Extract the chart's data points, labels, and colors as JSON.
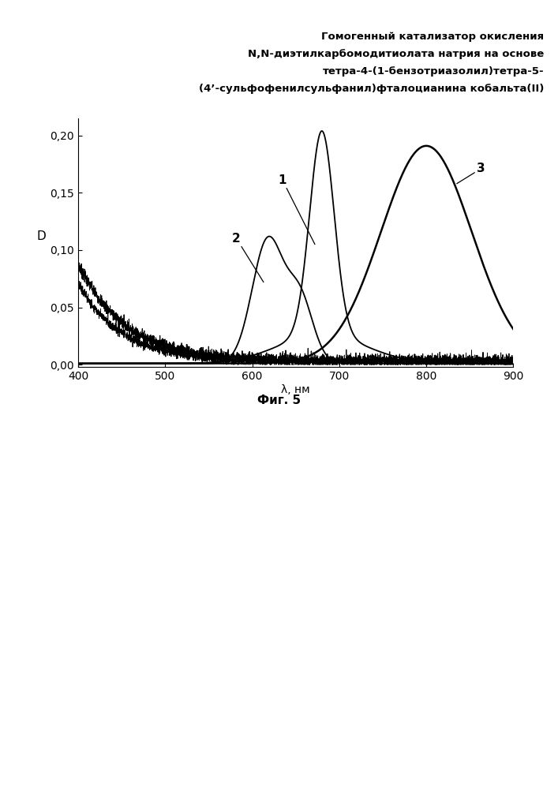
{
  "title_line1": "Гомогенный катализатор окисления",
  "title_line2": "N,N-диэтилкарбомодитиолата натрия на основе",
  "title_line3": "тетра-4-(1-бензотриазолил)тетра-5-",
  "title_line4": "(4’-сульфофенилсульфанил)фталоцианина кобальта(II)",
  "xlabel": "λ, нм",
  "ylabel": "D",
  "caption": "Фиг. 5",
  "xlim": [
    400,
    900
  ],
  "ylim": [
    -0.002,
    0.215
  ],
  "yticks": [
    0.0,
    0.05,
    0.1,
    0.15,
    0.2
  ],
  "xticks": [
    400,
    500,
    600,
    700,
    800,
    900
  ],
  "figsize": [
    7.07,
    10.0
  ],
  "dpi": 100,
  "background_color": "#ffffff"
}
